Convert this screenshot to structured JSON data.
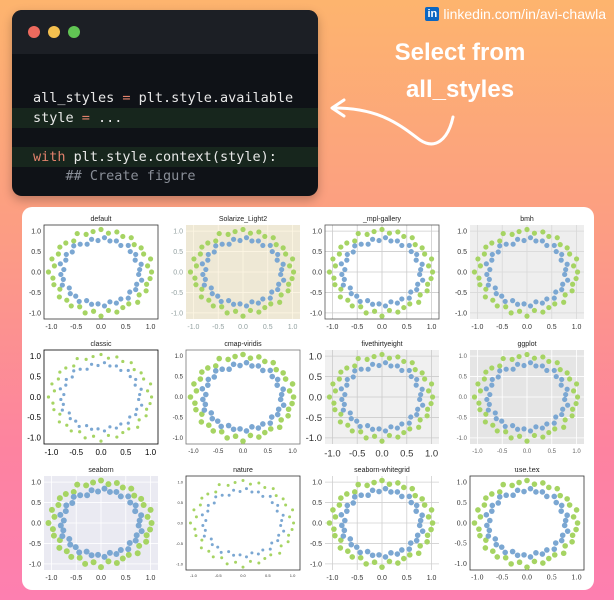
{
  "header": {
    "linkedin_text": "linkedin.com/in/avi-chawla",
    "headline_line1": "Select from",
    "headline_line2": "all_styles"
  },
  "code": {
    "line1_a": "all_styles ",
    "line1_op": "=",
    "line1_b": " plt.style.available",
    "line2_a": "style ",
    "line2_op": "=",
    "line2_b": " ...",
    "line3_kw": "with",
    "line3_b": " plt.style.context(style):",
    "line4": "    ## Create figure"
  },
  "window_dots": [
    "#ed6a5e",
    "#f4bf4f",
    "#61c554"
  ],
  "chart_data": {
    "type": "scatter",
    "ticks": [
      "-1.0",
      "-0.5",
      "0.0",
      "0.5",
      "1.0"
    ],
    "tick_values": [
      -1.0,
      -0.5,
      0.0,
      0.5,
      1.0
    ],
    "xlim": [
      -1.15,
      1.15
    ],
    "ylim": [
      -1.15,
      1.15
    ],
    "series": [
      {
        "color": "#a6d463",
        "points": [
          [
            1.02,
            0.0
          ],
          [
            0.94,
            0.15
          ],
          [
            1.0,
            0.32
          ],
          [
            0.86,
            0.44
          ],
          [
            0.81,
            0.59
          ],
          [
            0.67,
            0.67
          ],
          [
            0.61,
            0.84
          ],
          [
            0.44,
            0.87
          ],
          [
            0.32,
            0.98
          ],
          [
            0.15,
            0.95
          ],
          [
            0.0,
            1.04
          ],
          [
            -0.16,
            0.99
          ],
          [
            -0.3,
            0.92
          ],
          [
            -0.48,
            0.94
          ],
          [
            -0.55,
            0.76
          ],
          [
            -0.71,
            0.71
          ],
          [
            -0.83,
            0.61
          ],
          [
            -0.86,
            0.44
          ],
          [
            -0.99,
            0.32
          ],
          [
            -0.94,
            0.15
          ],
          [
            -1.06,
            0.0
          ],
          [
            -0.97,
            -0.15
          ],
          [
            -0.95,
            -0.31
          ],
          [
            -0.83,
            -0.42
          ],
          [
            -0.84,
            -0.61
          ],
          [
            -0.69,
            -0.69
          ],
          [
            -0.6,
            -0.83
          ],
          [
            -0.43,
            -0.85
          ],
          [
            -0.32,
            -1.0
          ],
          [
            -0.15,
            -0.96
          ],
          [
            0.0,
            -1.08
          ],
          [
            0.15,
            -0.94
          ],
          [
            0.32,
            -0.98
          ],
          [
            0.44,
            -0.87
          ],
          [
            0.56,
            -0.78
          ],
          [
            0.74,
            -0.74
          ],
          [
            0.77,
            -0.56
          ],
          [
            0.91,
            -0.46
          ],
          [
            0.92,
            -0.3
          ],
          [
            0.99,
            -0.16
          ]
        ]
      },
      {
        "color": "#7ba7d2",
        "points": [
          [
            0.78,
            0.06
          ],
          [
            0.81,
            0.19
          ],
          [
            0.69,
            0.29
          ],
          [
            0.7,
            0.43
          ],
          [
            0.59,
            0.5
          ],
          [
            0.55,
            0.65
          ],
          [
            0.4,
            0.65
          ],
          [
            0.31,
            0.76
          ],
          [
            0.18,
            0.76
          ],
          [
            0.07,
            0.84
          ],
          [
            -0.06,
            0.77
          ],
          [
            -0.19,
            0.8
          ],
          [
            -0.28,
            0.68
          ],
          [
            -0.42,
            0.68
          ],
          [
            -0.55,
            0.64
          ],
          [
            -0.58,
            0.49
          ],
          [
            -0.7,
            0.43
          ],
          [
            -0.71,
            0.29
          ],
          [
            -0.82,
            0.2
          ],
          [
            -0.75,
            0.06
          ],
          [
            -0.81,
            -0.06
          ],
          [
            -0.76,
            -0.18
          ],
          [
            -0.78,
            -0.32
          ],
          [
            -0.64,
            -0.39
          ],
          [
            -0.62,
            -0.53
          ],
          [
            -0.51,
            -0.59
          ],
          [
            -0.44,
            -0.72
          ],
          [
            -0.29,
            -0.7
          ],
          [
            -0.19,
            -0.79
          ],
          [
            -0.06,
            -0.78
          ],
          [
            0.07,
            -0.83
          ],
          [
            0.18,
            -0.73
          ],
          [
            0.31,
            -0.76
          ],
          [
            0.4,
            -0.66
          ],
          [
            0.55,
            -0.64
          ],
          [
            0.58,
            -0.49
          ],
          [
            0.7,
            -0.43
          ],
          [
            0.72,
            -0.3
          ],
          [
            0.82,
            -0.2
          ],
          [
            0.76,
            -0.06
          ]
        ]
      }
    ],
    "panels": [
      {
        "title": "default",
        "background": "#ffffff",
        "grid": false
      },
      {
        "title": "Solarize_Light2",
        "background": "#eee8d5",
        "grid": true
      },
      {
        "title": "_mpl-gallery",
        "background": "#ffffff",
        "grid": true
      },
      {
        "title": "bmh",
        "background": "#eeeeee",
        "grid": true
      },
      {
        "title": "classic",
        "background": "#ffffff",
        "grid": false
      },
      {
        "title": "cmap-viridis",
        "background": "#ffffff",
        "grid": false
      },
      {
        "title": "fivethirtyeight",
        "background": "#f0f0f0",
        "grid": true
      },
      {
        "title": "ggplot",
        "background": "#e5e5e5",
        "grid": true
      },
      {
        "title": "seaborn",
        "background": "#eaeaf2",
        "grid": true
      },
      {
        "title": "nature",
        "background": "#ffffff",
        "grid": false
      },
      {
        "title": "seaborn-whitegrid",
        "background": "#ffffff",
        "grid": true
      },
      {
        "title": "use.tex",
        "background": "#ffffff",
        "grid": false
      }
    ]
  }
}
